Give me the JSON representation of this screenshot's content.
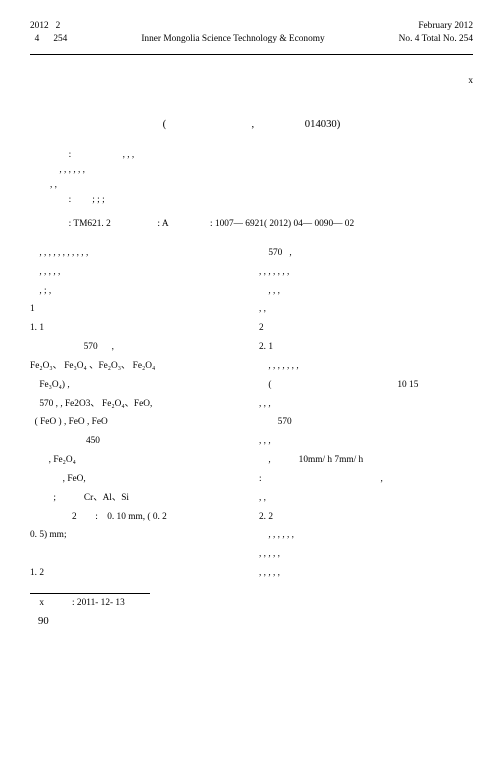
{
  "header": {
    "year": "2012",
    "month_num": "2",
    "issue_line1": "4",
    "issue_line2": "254",
    "journal": "Inner Mongolia Science Technology & Economy",
    "right_line1": "February 2012",
    "right_line2": "No. 4 Total No. 254"
  },
  "sup": "x",
  "affil_left": "(",
  "affil_mid": ",",
  "affil_right": "014030)",
  "abstract_label": ":",
  "abstract_body": ", , ,",
  "abstract_line2": ", , , , , ,",
  "abstract_line3": ", ,",
  "keywords_label": ":",
  "keywords_body": "; ; ;",
  "clc_label": ":",
  "clc": "TM621. 2",
  "doccode_label": ":",
  "doccode": "A",
  "artid_label": ":",
  "artid": "1007— 6921( 2012) 04— 0090— 02",
  "body": {
    "p1": ", , , , , , , , , , ,",
    "p2": ", , , , ,",
    "p3": ", ; ,",
    "sec1": "1",
    "sec11": "1. 1",
    "t570": "570",
    "fe_line1": "Fe₂O₃、 Fe₃O₄ 、Fe₂O₃、 Fe₂O₄",
    "fe_line1b": "Fe₃O₄) ,",
    "fe_line2": "570 , , Fe2O3、 Fe₂O₄、FeO,",
    "fe_line3": "( FeO ) , FeO , FeO",
    "t450": "450",
    "fe_line4": ", Fe₂O₄",
    "fe_line5": ", FeO,",
    "crl": "Cr、Al、Si",
    "mm_line": "0. 10 mm, ( 0. 2",
    "mm05": "0. 5) mm;",
    "sec12": "1. 2",
    "sec2": "2",
    "sec21": "2. 1",
    "sec22": "2. 2",
    "rate": "10mm/ h    7mm/ h",
    "r1015": "10    15",
    "left_paren": "("
  },
  "footnote": {
    "sym": "x",
    "label": ":",
    "date": "2011- 12- 13"
  },
  "page": "90"
}
